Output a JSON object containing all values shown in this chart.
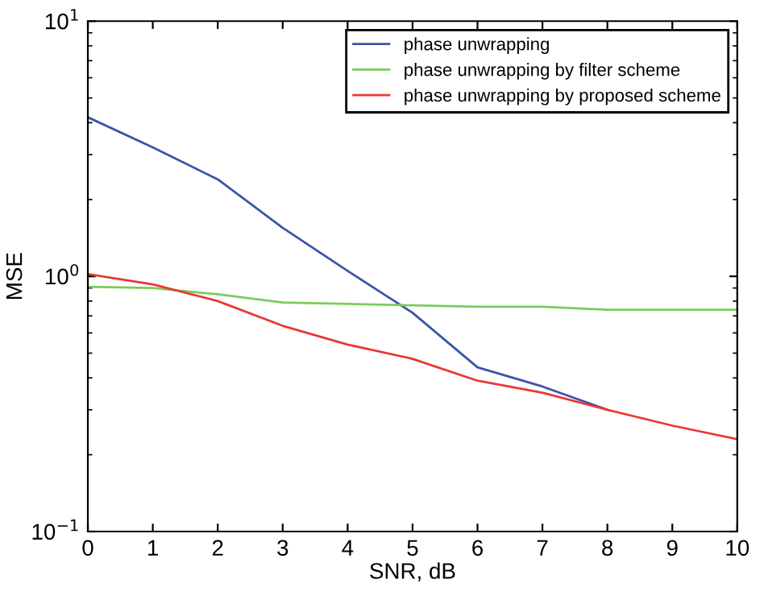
{
  "chart_data": {
    "type": "line",
    "xlabel": "SNR, dB",
    "ylabel": "MSE",
    "log": "y",
    "legend": "top right",
    "grid": false,
    "marker": "none",
    "line_style": "solid",
    "x": [
      0,
      1,
      2,
      3,
      4,
      5,
      6,
      7,
      8,
      9,
      10
    ],
    "xlim": [
      0,
      10
    ],
    "xticks": [
      0,
      1,
      2,
      3,
      4,
      5,
      6,
      7,
      8,
      9,
      10
    ],
    "ylim": [
      0.1,
      10
    ],
    "yticks": [
      {
        "value": 0.1,
        "label": "10$^{−1}$"
      },
      {
        "value": 1,
        "label": "10$^{0}$"
      },
      {
        "value": 10,
        "label": "10$^{1}$"
      }
    ],
    "series": [
      {
        "name": "phase unwrapping",
        "color": "#3a55a8",
        "values": [
          4.2,
          3.2,
          2.4,
          1.55,
          1.05,
          0.72,
          0.44,
          0.37,
          0.3,
          null,
          null
        ]
      },
      {
        "name": "phase unwrapping by filter scheme",
        "color": "#7acc5a",
        "values": [
          0.91,
          0.9,
          0.85,
          0.79,
          0.78,
          0.77,
          0.76,
          0.76,
          0.74,
          0.74,
          0.74
        ]
      },
      {
        "name": "phase unwrapping by proposed scheme",
        "color": "#e83838",
        "values": [
          1.02,
          0.93,
          0.8,
          0.64,
          0.54,
          0.475,
          0.39,
          0.35,
          0.3,
          0.26,
          0.23
        ]
      }
    ]
  }
}
